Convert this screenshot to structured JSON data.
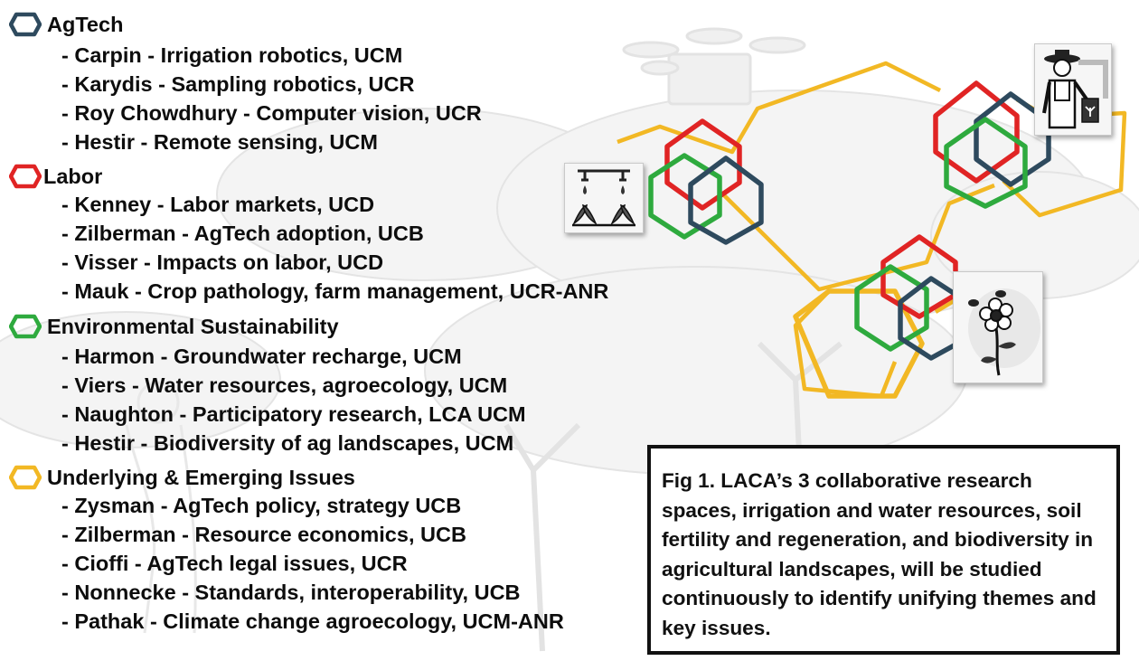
{
  "groups": [
    {
      "title": "AgTech",
      "color": "#2e4a5e",
      "members": [
        "- Carpin - Irrigation robotics, UCM",
        "- Karydis - Sampling robotics, UCR",
        "- Roy Chowdhury - Computer vision, UCR",
        "- Hestir - Remote sensing, UCM"
      ]
    },
    {
      "title": "Labor",
      "color": "#e02424",
      "members": [
        "- Kenney - Labor markets, UCD",
        "- Zilberman - AgTech adoption, UCB",
        "- Visser - Impacts on labor, UCD",
        "- Mauk - Crop pathology, farm management, UCR-ANR"
      ]
    },
    {
      "title": "Environmental Sustainability",
      "color": "#2eaa3e",
      "members": [
        "- Harmon - Groundwater recharge, UCM",
        "- Viers - Water resources, agroecology, UCM",
        "- Naughton - Participatory research, LCA UCM",
        "- Hestir - Biodiversity of ag landscapes, UCM"
      ]
    },
    {
      "title": "Underlying & Emerging Issues",
      "color": "#f2b824",
      "members": [
        "- Zysman - AgTech policy, strategy UCB",
        "- Zilberman - Resource economics, UCB",
        "- Cioffi - AgTech legal issues, UCR",
        "- Nonnecke - Standards, interoperability, UCB",
        "- Pathak - Climate change agroecology, UCM-ANR"
      ]
    }
  ],
  "caption": "Fig 1. LACA’s 3 collaborative research spaces, irrigation and water resources, soil fertility and regeneration, and biodiversity in agricultural landscapes, will be studied continuously to identify unifying themes and key issues.",
  "icons": [
    "irrigation-icon",
    "farmer-icon",
    "flower-bee-icon"
  ]
}
